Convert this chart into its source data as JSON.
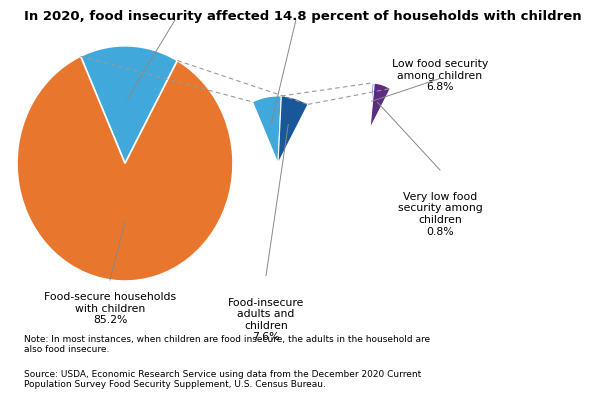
{
  "title": "In 2020, food insecurity affected 14.8 percent of households with children",
  "title_fontsize": 9.5,
  "background_color": "#ffffff",
  "note_text": "Note: In most instances, when children are food insecure, the adults in the household are\nalso food insecure.",
  "source_text": "Source: USDA, Economic Research Service using data from the December 2020 Current\nPopulation Survey Food Security Supplement, U.S. Census Bureau.",
  "pie1_colors": [
    "#E8762C",
    "#41A8DC"
  ],
  "pie2_colors": [
    "#41A8DC",
    "#1A5799"
  ],
  "pie3_colors": [
    "#1A5799",
    "#5B2C82"
  ],
  "text_fontsize": 7.8,
  "note_fontsize": 6.5,
  "source_fontsize": 6.5
}
